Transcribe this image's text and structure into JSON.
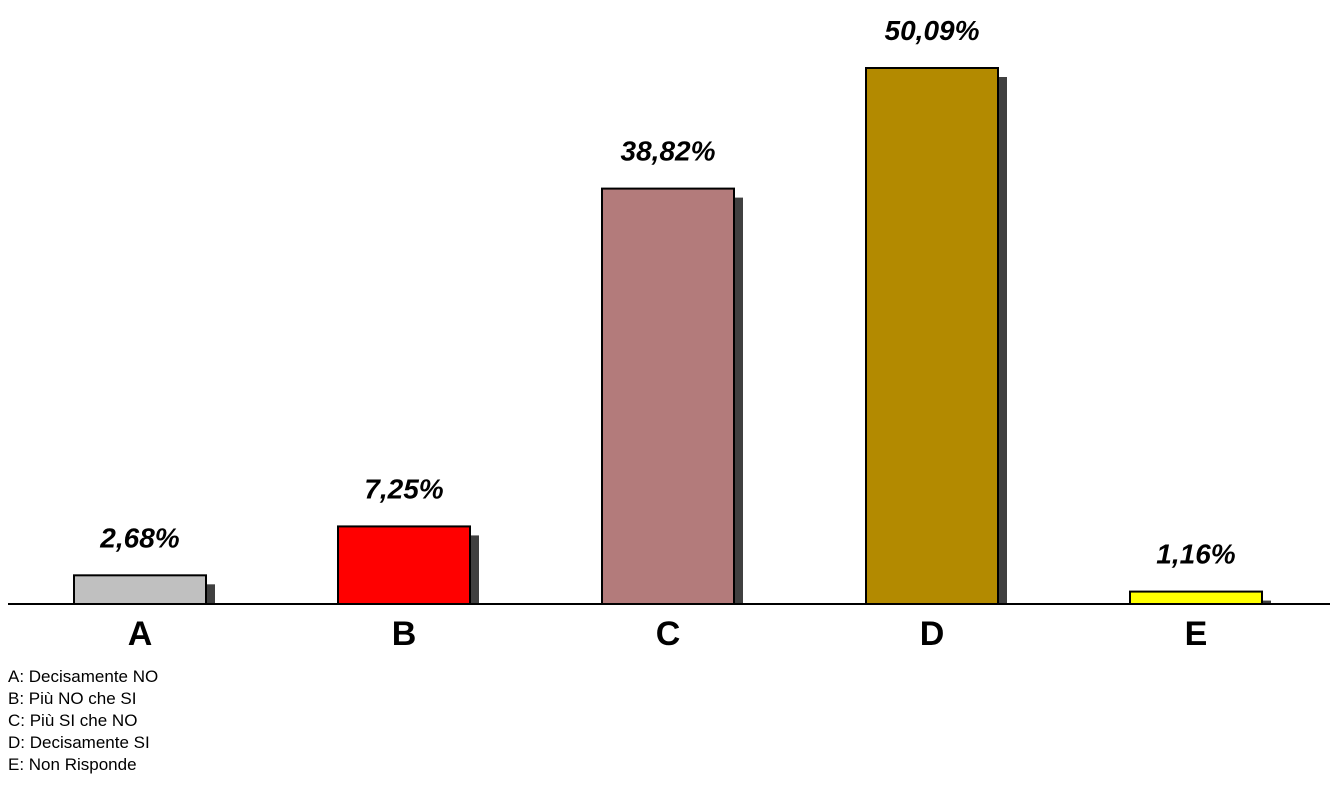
{
  "chart_data": {
    "type": "bar",
    "categories": [
      "A",
      "B",
      "C",
      "D",
      "E"
    ],
    "values": [
      2.68,
      7.25,
      38.82,
      50.09,
      1.16
    ],
    "value_labels": [
      "2,68%",
      "7,25%",
      "38,82%",
      "50,09%",
      "1,16%"
    ],
    "colors": [
      "#c0c0c0",
      "#ff0000",
      "#b37b7b",
      "#b38a00",
      "#ffff00"
    ],
    "shadow_color": "#404040",
    "legend": [
      "A: Decisamente NO",
      "B: Più NO che SI",
      "C: Più SI che NO",
      "D: Decisamente SI",
      "E: Non Risponde"
    ],
    "grid": false,
    "ylim": [
      0,
      50.09
    ]
  }
}
